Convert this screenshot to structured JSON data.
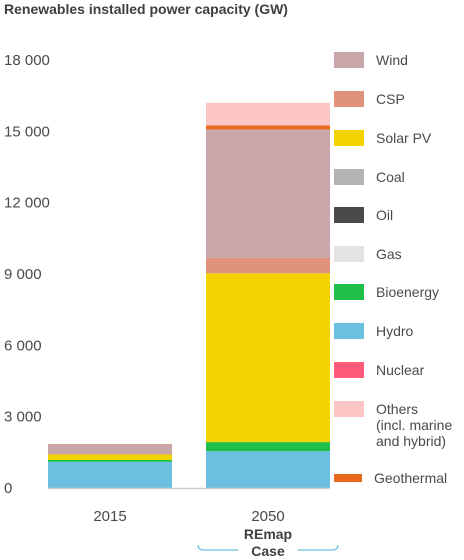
{
  "chart_data": {
    "type": "bar",
    "stacked": true,
    "title": "Renewables installed power capacity (GW)",
    "categories": [
      "2015",
      "2050"
    ],
    "category_sublabel": {
      "2050": [
        "REmap",
        "Case"
      ]
    },
    "ylim": [
      0,
      18000
    ],
    "yticks": [
      0,
      3000,
      6000,
      9000,
      12000,
      15000,
      18000
    ],
    "ytick_labels": [
      "0",
      "3 000",
      "6 000",
      "9 000",
      "12 000",
      "15 000",
      "18 000"
    ],
    "grid": false,
    "legend_placement": "right",
    "series": [
      {
        "name": "Hydro",
        "color": "#6bbfe0",
        "values": [
          1100,
          1550
        ]
      },
      {
        "name": "Bioenergy",
        "color": "#1fbf4a",
        "values": [
          80,
          380
        ]
      },
      {
        "name": "Solar PV",
        "color": "#f4d400",
        "values": [
          230,
          7100
        ]
      },
      {
        "name": "CSP",
        "color": "#e1927c",
        "values": [
          0,
          650
        ]
      },
      {
        "name": "Wind",
        "color": "#c9a6aa",
        "values": [
          430,
          5400
        ]
      },
      {
        "name": "Geothermal",
        "color": "#e8691c",
        "values": [
          10,
          170
        ]
      },
      {
        "name": "Others (incl. marine and hybrid)",
        "color": "#fdc6c6",
        "values": [
          0,
          950
        ]
      },
      {
        "name": "Coal",
        "color": "#b3b3b3",
        "values": [
          0,
          0
        ]
      },
      {
        "name": "Oil",
        "color": "#4a4a4a",
        "values": [
          0,
          0
        ]
      },
      {
        "name": "Gas",
        "color": "#e3e3e3",
        "values": [
          0,
          0
        ]
      },
      {
        "name": "Nuclear",
        "color": "#ff5a7a",
        "values": [
          0,
          0
        ]
      }
    ]
  },
  "legend": [
    {
      "label": "Wind",
      "color": "#c9a6aa"
    },
    {
      "label": "CSP",
      "color": "#e1927c"
    },
    {
      "label": "Solar PV",
      "color": "#f4d400"
    },
    {
      "label": "Coal",
      "color": "#b3b3b3"
    },
    {
      "label": "Oil",
      "color": "#4a4a4a"
    },
    {
      "label": "Gas",
      "color": "#e3e3e3"
    },
    {
      "label": "Bioenergy",
      "color": "#1fbf4a"
    },
    {
      "label": "Hydro",
      "color": "#6bbfe0"
    },
    {
      "label": "Nuclear",
      "color": "#ff5a7a"
    },
    {
      "label": "Others\n(incl. marine\nand hybrid)",
      "color": "#fdc6c6"
    },
    {
      "label": "Geothermal",
      "color": "#e8691c"
    }
  ],
  "styles": {
    "axis_color": "#cfcfcf",
    "bracket_color": "#6bbfe0"
  }
}
